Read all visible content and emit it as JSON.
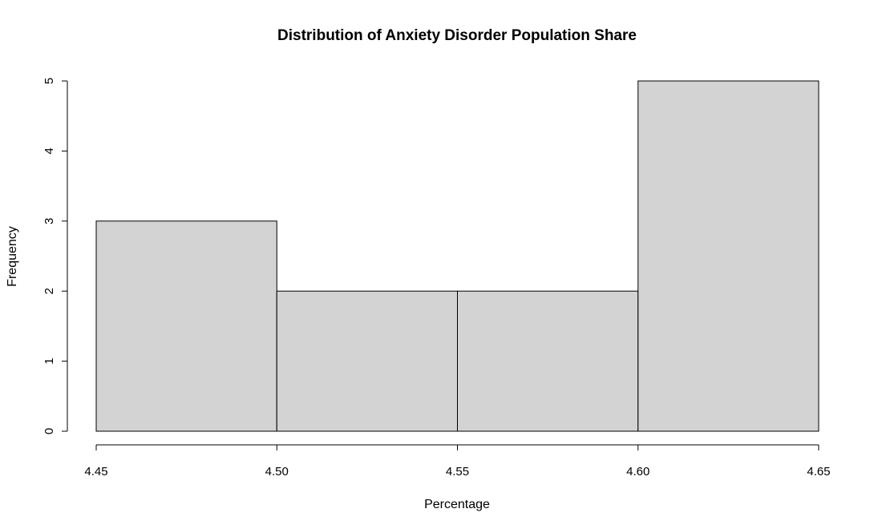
{
  "chart_data": {
    "type": "bar",
    "subtype": "histogram",
    "title": "Distribution of Anxiety Disorder Population Share",
    "xlabel": "Percentage",
    "ylabel": "Frequency",
    "bins": [
      {
        "start": 4.45,
        "end": 4.5,
        "count": 3
      },
      {
        "start": 4.5,
        "end": 4.55,
        "count": 2
      },
      {
        "start": 4.55,
        "end": 4.6,
        "count": 2
      },
      {
        "start": 4.6,
        "end": 4.65,
        "count": 5
      }
    ],
    "xlim": [
      4.45,
      4.65
    ],
    "ylim": [
      0,
      5
    ],
    "x_ticks": [
      "4.45",
      "4.50",
      "4.55",
      "4.60",
      "4.65"
    ],
    "y_ticks": [
      "0",
      "1",
      "2",
      "3",
      "4",
      "5"
    ],
    "grid": false,
    "bar_color": "#d3d3d3",
    "border_color": "#000000"
  }
}
